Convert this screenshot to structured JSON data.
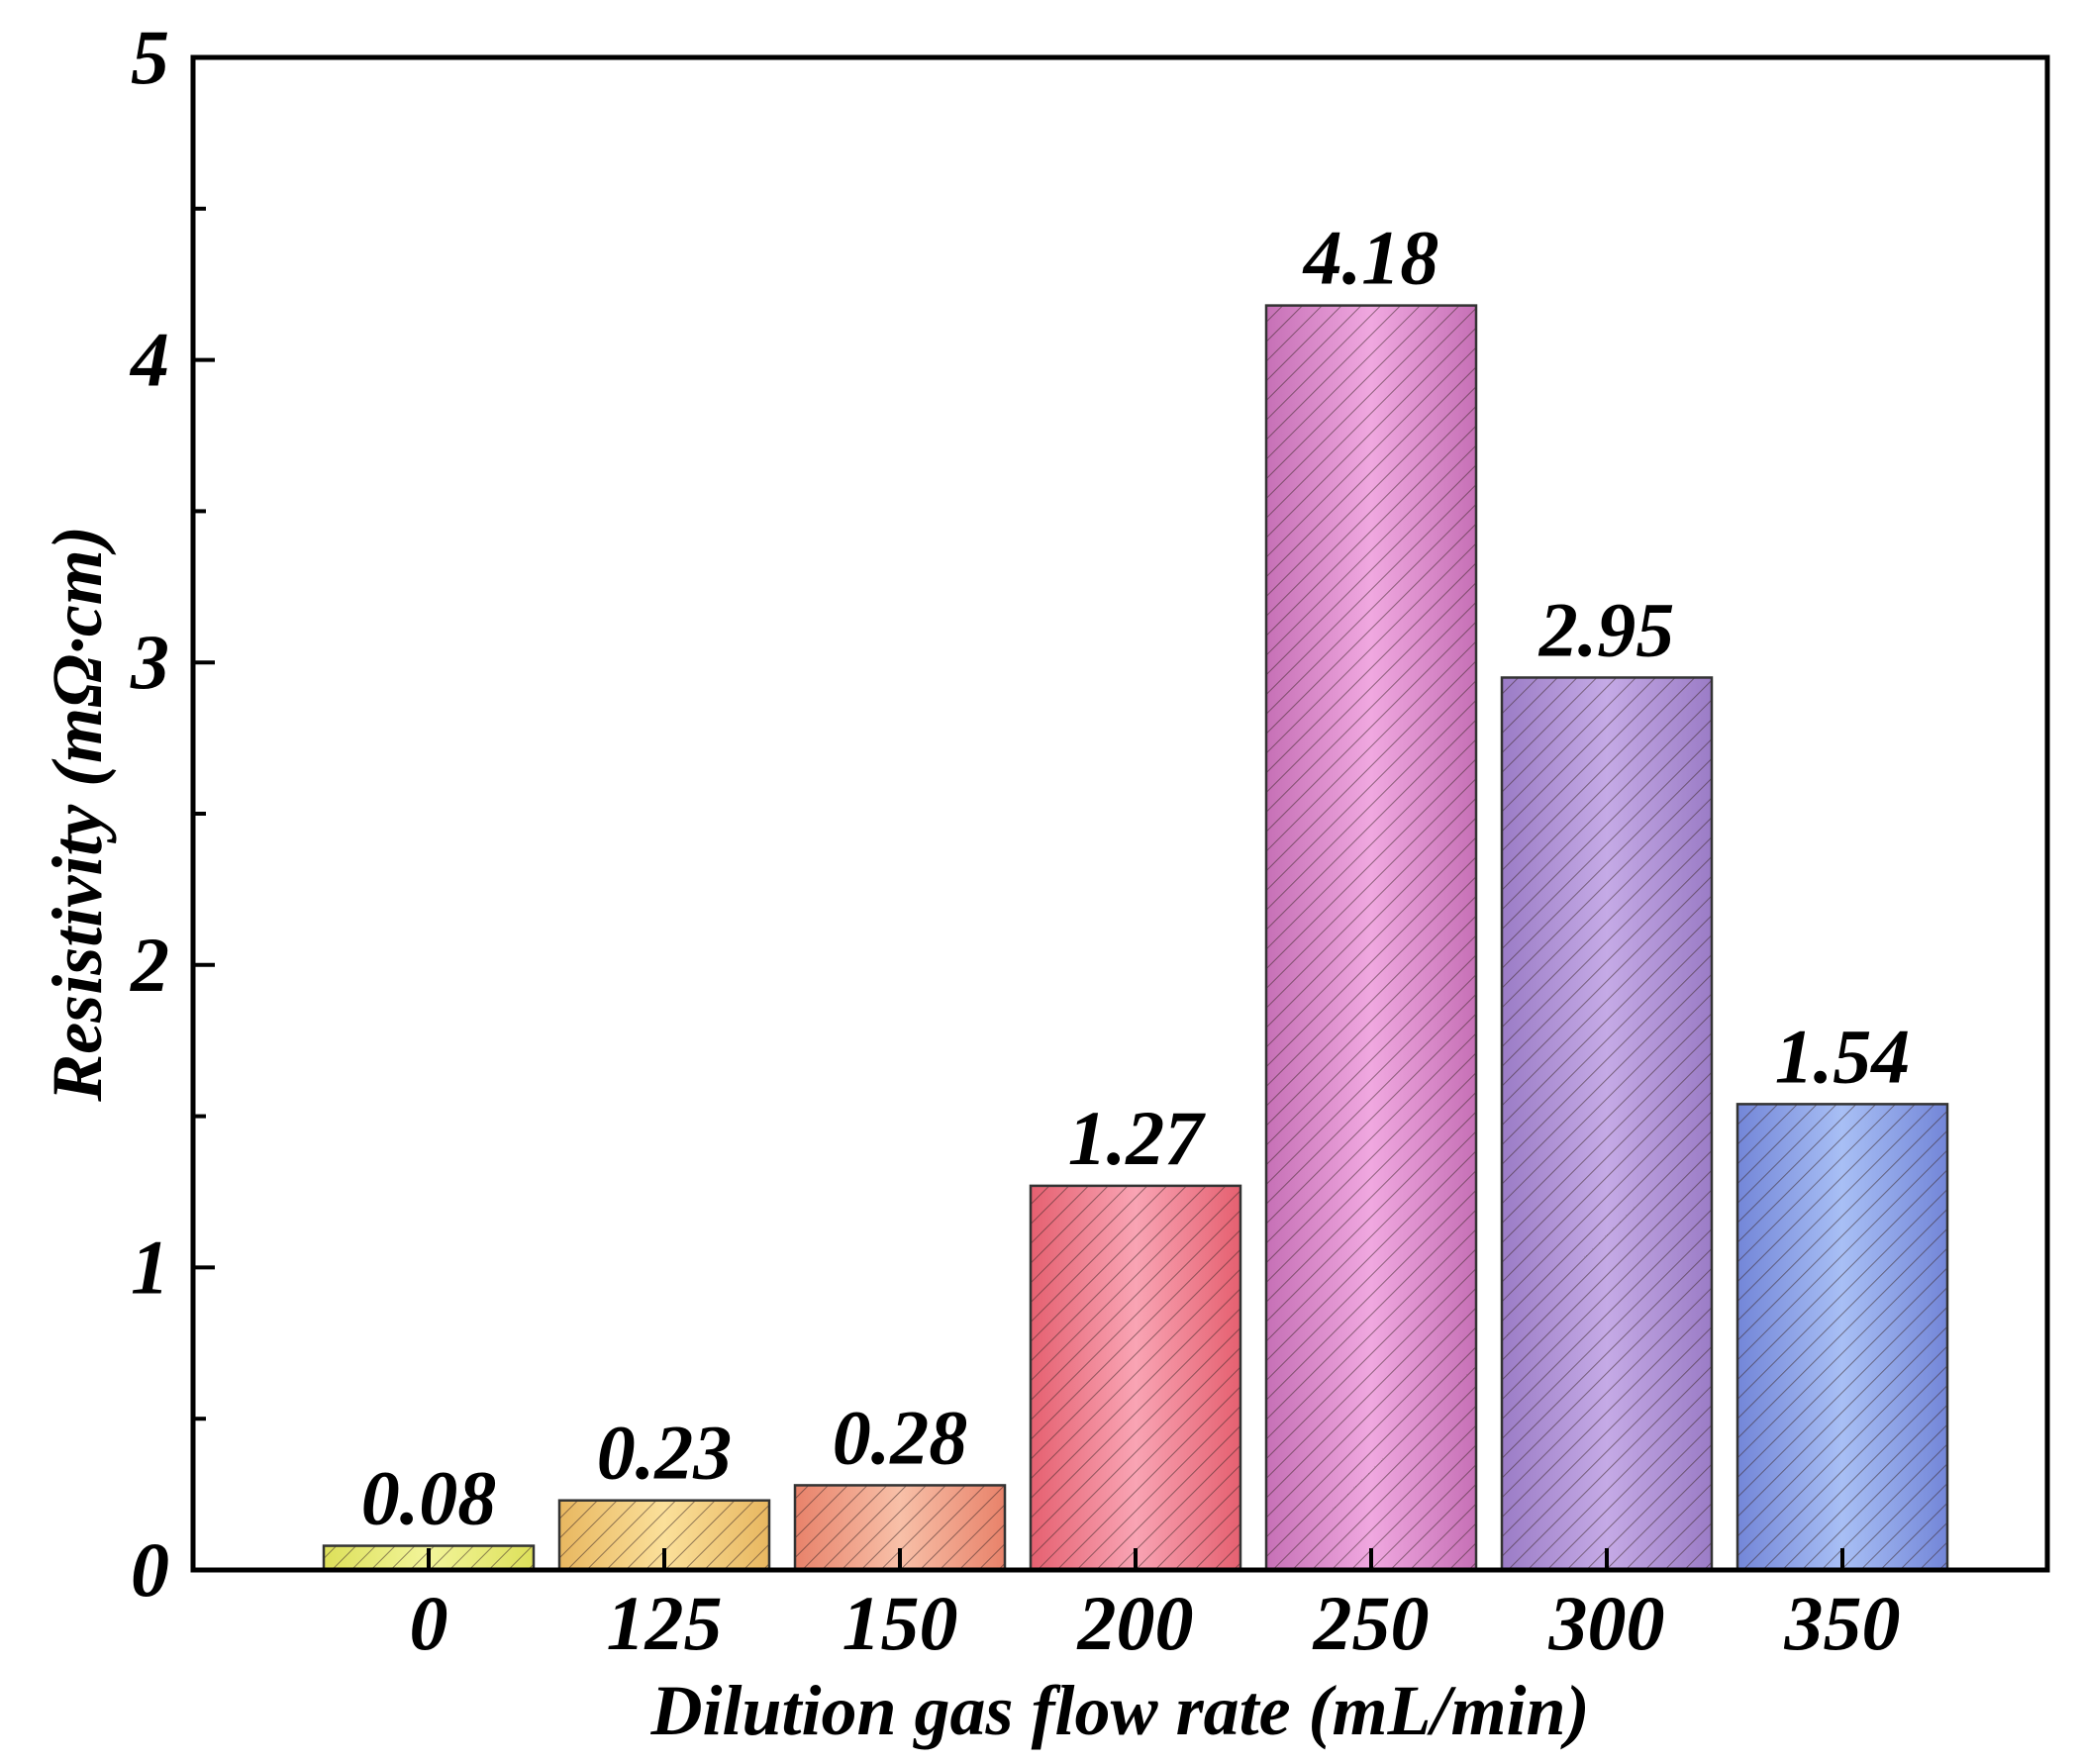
{
  "chart_data": {
    "type": "bar",
    "title": "",
    "xlabel": "Dilution gas flow rate (mL/min)",
    "ylabel": "Resistivity (mΩ·cm)",
    "ylim": [
      0,
      5
    ],
    "yticks": [
      "0",
      "1",
      "2",
      "3",
      "4",
      "5"
    ],
    "categories": [
      "0",
      "125",
      "150",
      "200",
      "250",
      "300",
      "350"
    ],
    "values": [
      0.08,
      0.23,
      0.28,
      1.27,
      4.18,
      2.95,
      1.54
    ],
    "data_labels": [
      "0.08",
      "0.23",
      "0.28",
      "1.27",
      "4.18",
      "2.95",
      "1.54"
    ],
    "bar_pattern": "diagonal-hatch",
    "grid": false,
    "colors": [
      {
        "light": "#f2f59a",
        "dark": "#dde05a"
      },
      {
        "light": "#fbe09a",
        "dark": "#e8b760"
      },
      {
        "light": "#f8c0a8",
        "dark": "#e8826a"
      },
      {
        "light": "#f9a4b4",
        "dark": "#e56070"
      },
      {
        "light": "#f0a8e0",
        "dark": "#c670b6"
      },
      {
        "light": "#c5aae6",
        "dark": "#9b7cc6"
      },
      {
        "light": "#a8bff5",
        "dark": "#7386d8"
      }
    ]
  }
}
